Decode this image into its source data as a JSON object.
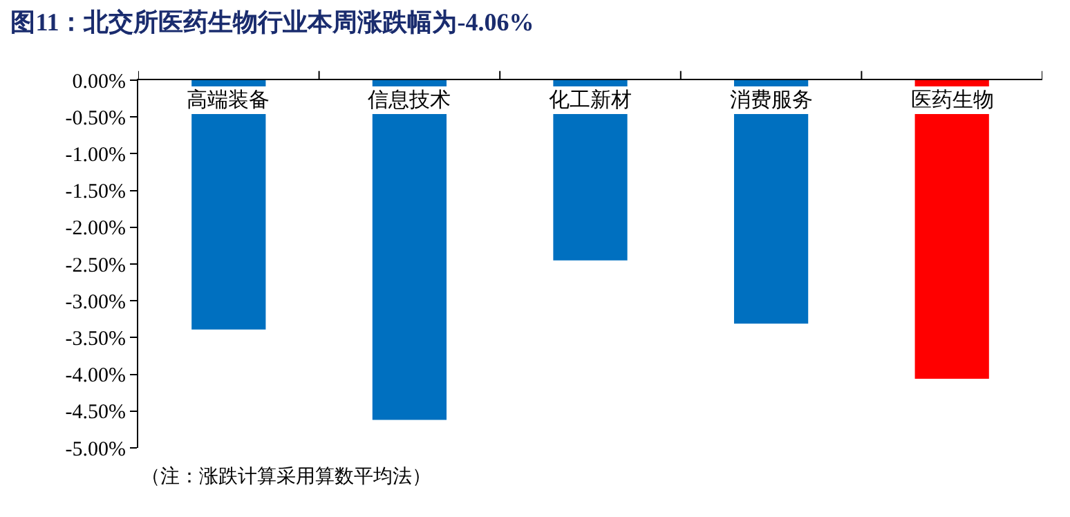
{
  "chart_data": {
    "type": "bar",
    "title": "图11：北交所医药生物行业本周涨跌幅为-4.06%",
    "categories": [
      "高端装备",
      "信息技术",
      "化工新材",
      "消费服务",
      "医药生物"
    ],
    "values": [
      -3.39,
      -4.62,
      -2.45,
      -3.31,
      -4.06
    ],
    "colors": [
      "#0070c0",
      "#0070c0",
      "#0070c0",
      "#0070c0",
      "#ff0000"
    ],
    "ylim": [
      -5,
      0
    ],
    "yticks": [
      {
        "value": 0,
        "label": "0.00%"
      },
      {
        "value": -0.5,
        "label": "-0.50%"
      },
      {
        "value": -1,
        "label": "-1.00%"
      },
      {
        "value": -1.5,
        "label": "-1.50%"
      },
      {
        "value": -2,
        "label": "-2.00%"
      },
      {
        "value": -2.5,
        "label": "-2.50%"
      },
      {
        "value": -3,
        "label": "-3.00%"
      },
      {
        "value": -3.5,
        "label": "-3.50%"
      },
      {
        "value": -4,
        "label": "-4.00%"
      },
      {
        "value": -4.5,
        "label": "-4.50%"
      },
      {
        "value": -5,
        "label": "-5.00%"
      }
    ],
    "grid": false,
    "legend": false,
    "annotations": [
      "（注：涨跌计算采用算数平均法）"
    ]
  }
}
